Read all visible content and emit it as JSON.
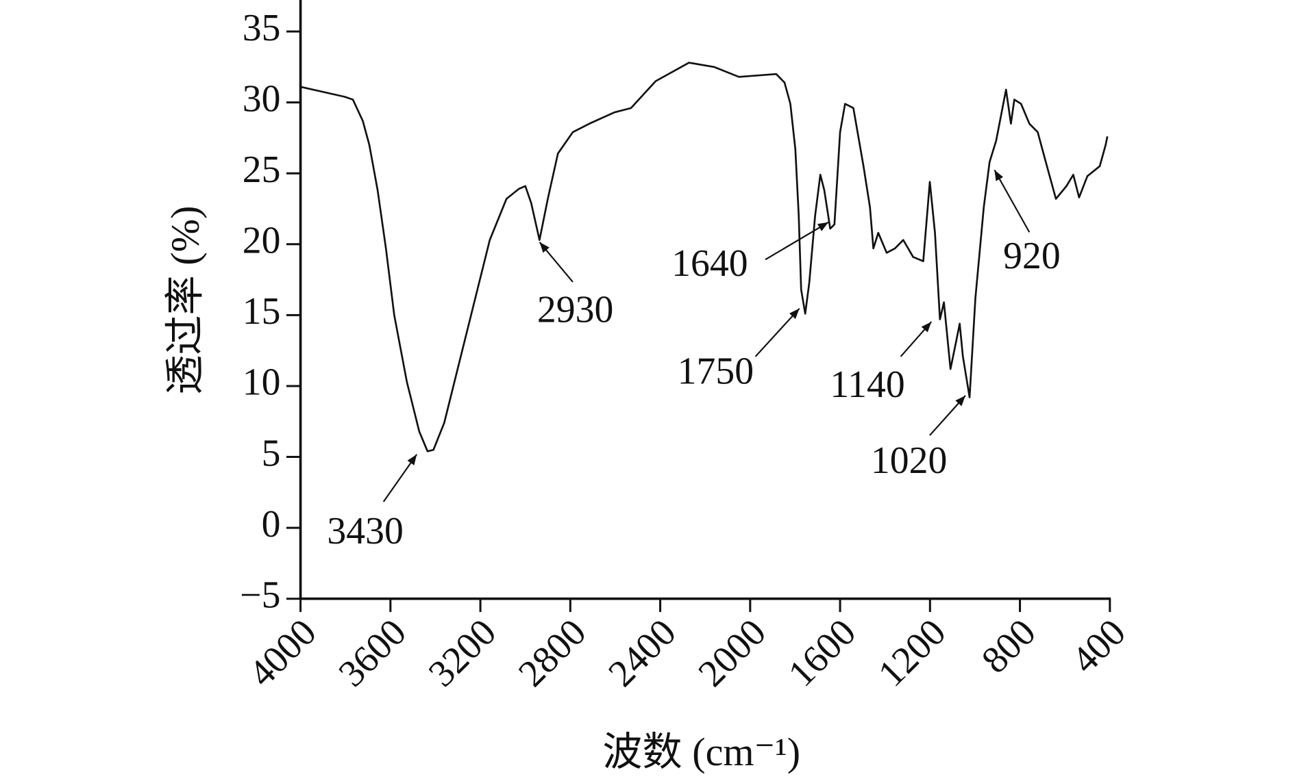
{
  "chart_data": {
    "type": "line",
    "x_label": "波数 (cm⁻¹)",
    "y_label": "透过率 (%)",
    "xlim": [
      4000,
      400
    ],
    "ylim": [
      -5,
      37
    ],
    "xticks": [
      4000,
      3600,
      3200,
      2800,
      2400,
      2000,
      1600,
      1200,
      800,
      400
    ],
    "yticks": [
      {
        "value": -5,
        "label": "−5"
      },
      0,
      5,
      10,
      15,
      20,
      25,
      30,
      35
    ],
    "series": [
      {
        "color": "#111111",
        "x": [
          4000,
          3804,
          3767,
          3723,
          3694,
          3657,
          3620,
          3583,
          3527,
          3472,
          3435,
          3409,
          3361,
          3306,
          3232,
          3158,
          3084,
          3029,
          3000,
          2974,
          2937,
          2900,
          2855,
          2789,
          2715,
          2604,
          2530,
          2420,
          2272,
          2161,
          2050,
          1884,
          1847,
          1821,
          1799,
          1784,
          1773,
          1755,
          1737,
          1711,
          1688,
          1670,
          1644,
          1625,
          1600,
          1578,
          1541,
          1496,
          1467,
          1452,
          1430,
          1393,
          1356,
          1319,
          1275,
          1230,
          1201,
          1178,
          1156,
          1138,
          1109,
          1083,
          1068,
          1054,
          1024,
          998,
          961,
          935,
          906,
          862,
          840,
          825,
          795,
          758,
          721,
          685,
          640,
          593,
          563,
          537,
          500,
          445,
          419,
          411
        ],
        "values": [
          31.1,
          30.4,
          30.2,
          28.7,
          27.0,
          23.8,
          19.7,
          15.0,
          10.3,
          6.8,
          5.4,
          5.5,
          7.4,
          10.9,
          15.6,
          20.3,
          23.2,
          23.9,
          24.1,
          22.9,
          20.3,
          23.2,
          26.4,
          27.9,
          28.5,
          29.3,
          29.6,
          31.5,
          32.8,
          32.5,
          31.8,
          32.0,
          31.4,
          29.9,
          26.7,
          22.0,
          16.8,
          15.1,
          17.3,
          22.0,
          24.9,
          23.8,
          21.1,
          21.4,
          27.9,
          29.9,
          29.6,
          25.5,
          22.6,
          19.7,
          20.8,
          19.4,
          19.7,
          20.3,
          19.1,
          18.8,
          24.4,
          20.8,
          14.7,
          15.9,
          11.2,
          13.2,
          14.4,
          12.1,
          9.2,
          16.2,
          22.6,
          25.8,
          27.3,
          30.9,
          28.5,
          30.2,
          29.9,
          28.5,
          27.9,
          25.8,
          23.2,
          24.1,
          24.9,
          23.3,
          24.8,
          25.5,
          27.0,
          27.6
        ]
      }
    ],
    "annotations": [
      "3430",
      "2930",
      "1640",
      "1750",
      "1140",
      "1020",
      "920"
    ]
  }
}
